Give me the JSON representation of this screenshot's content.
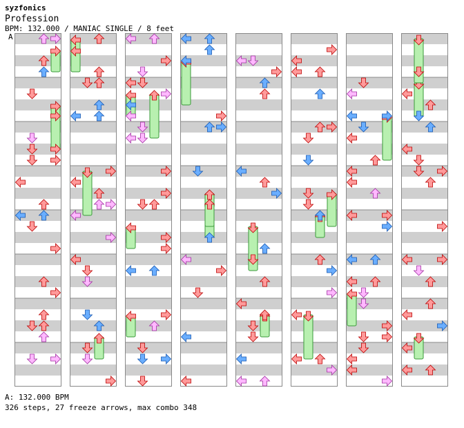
{
  "header": {
    "artist": "syzfonics",
    "title": "Profession",
    "meta": "BPM: 132.000 / MANIAC SINGLE / 8 feet",
    "section_marker": "A"
  },
  "footer": {
    "bpm_line": "A: 132.000 BPM",
    "stats_line": "326 steps, 27 freeze arrows, max combo 348"
  },
  "colors": {
    "quarter": "#ff9a9a",
    "eighth": "#6aaeff",
    "sixteenth": "#ffb8ff",
    "freeze": "#b8f0b0",
    "band": "#cfcfcf"
  },
  "chart_data": {
    "type": "step-chart",
    "columns": 8,
    "measures_per_column": 8,
    "lanes": [
      "left",
      "down",
      "up",
      "right"
    ],
    "steps": 326,
    "freeze_arrows": 27,
    "max_combo": 348
  }
}
